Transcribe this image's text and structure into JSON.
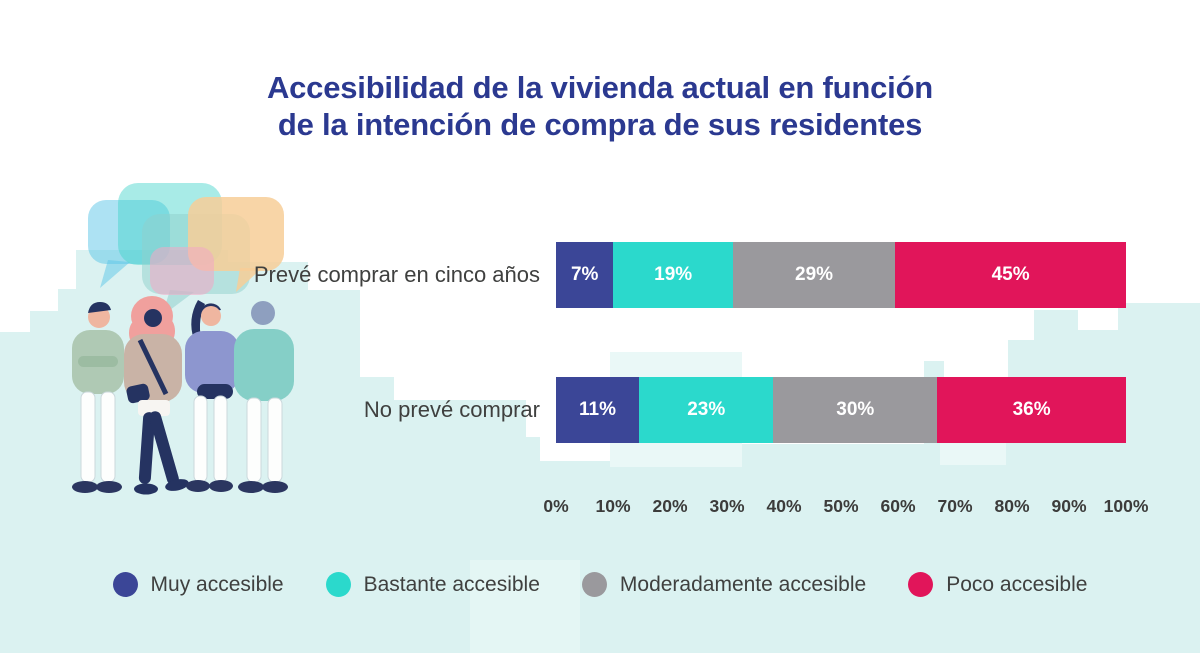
{
  "title_lines": {
    "line1": "Accesibilidad de la vivienda actual en función",
    "line2": "de la intención de compra de sus residentes"
  },
  "colors": {
    "title": "#2B3990",
    "label_text": "#3F403F",
    "axis_text": "#3C3C3B",
    "segment_label_text": "#FFFFFF",
    "background": "#FFFFFF",
    "sky": "#DBF2F1",
    "sky_light": "#EAF8F7"
  },
  "chart_data": {
    "type": "bar",
    "orientation": "horizontal",
    "stacked": true,
    "title": "Accesibilidad de la vivienda actual en función de la intención de compra de sus residentes",
    "categories": [
      "Prevé comprar en cinco años",
      "No prevé comprar"
    ],
    "series": [
      {
        "name": "Muy accesible",
        "color": "#3B4697",
        "values": [
          7,
          11
        ]
      },
      {
        "name": "Bastante accesible",
        "color": "#2BD9CC",
        "values": [
          19,
          23
        ]
      },
      {
        "name": "Moderadamente accesible",
        "color": "#9A999D",
        "values": [
          29,
          30
        ]
      },
      {
        "name": "Poco accesible",
        "color": "#E1155A",
        "values": [
          45,
          36
        ]
      }
    ],
    "value_suffix": "%",
    "xlim": [
      0,
      100
    ],
    "x_ticks": [
      "0%",
      "10%",
      "20%",
      "30%",
      "40%",
      "50%",
      "60%",
      "70%",
      "80%",
      "90%",
      "100%"
    ],
    "grid": false,
    "legend_position": "bottom"
  }
}
